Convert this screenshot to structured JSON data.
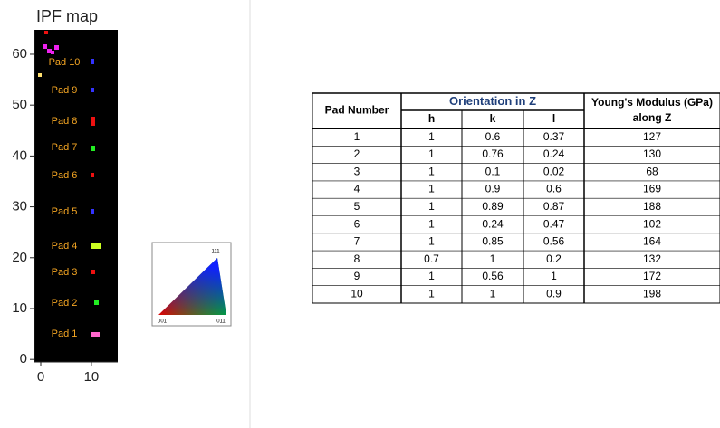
{
  "ipf_map": {
    "title": "IPF map",
    "xlim": [
      -1.25,
      15.2
    ],
    "ylim": [
      -0.5,
      64.8
    ],
    "xticks": [
      0,
      10
    ],
    "yticks": [
      0,
      10,
      20,
      30,
      40,
      50,
      60
    ],
    "pad_labels": [
      "Pad 1",
      "Pad 2",
      "Pad 3",
      "Pad 4",
      "Pad 5",
      "Pad 6",
      "Pad 7",
      "Pad 8",
      "Pad 9",
      "Pad 10"
    ]
  },
  "ipf_legend": {
    "top": "111",
    "left": "001",
    "right": "011"
  },
  "table": {
    "header": {
      "pad_number": "Pad Number",
      "orientation": "Orientation in Z",
      "h": "h",
      "k": "k",
      "l": "l",
      "modulus": [
        "Young's Modulus (GPa)",
        "along Z"
      ]
    },
    "rows": [
      [
        1,
        1,
        0.6,
        0.37,
        127
      ],
      [
        2,
        1,
        0.76,
        0.24,
        130
      ],
      [
        3,
        1,
        0.1,
        0.02,
        68
      ],
      [
        4,
        1,
        0.9,
        0.6,
        169
      ],
      [
        5,
        1,
        0.89,
        0.87,
        188
      ],
      [
        6,
        1,
        0.24,
        0.47,
        102
      ],
      [
        7,
        1,
        0.85,
        0.56,
        164
      ],
      [
        8,
        0.7,
        1,
        0.2,
        132
      ],
      [
        9,
        1,
        0.56,
        1,
        172
      ],
      [
        10,
        1,
        1,
        0.9,
        198
      ]
    ]
  }
}
